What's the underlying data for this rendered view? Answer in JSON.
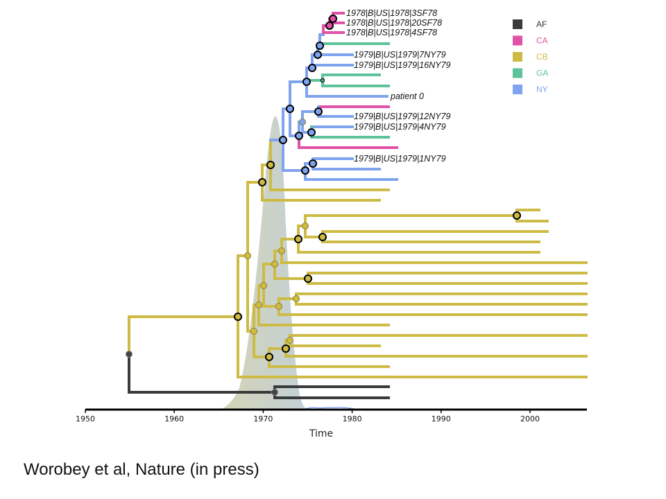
{
  "figure": {
    "axis": {
      "label": "Time",
      "ticks": [
        "1950",
        "1960",
        "1970",
        "1980",
        "1990",
        "2000"
      ],
      "range": [
        1950,
        2006
      ]
    },
    "legend": [
      {
        "label": "AF",
        "color": "#3a3a3a"
      },
      {
        "label": "CA",
        "color": "#e052a8"
      },
      {
        "label": "CB",
        "color": "#cdbb45"
      },
      {
        "label": "GA",
        "color": "#5ec29a"
      },
      {
        "label": "NY",
        "color": "#7fa3ee"
      }
    ],
    "tip_labels": [
      "1978|B|US|1978|3SF78",
      "1978|B|US|1978|20SF78",
      "1978|B|US|1978|4SF78",
      "1979|B|US|1979|7NY79",
      "1979|B|US|1979|16NY79",
      "patient 0",
      "1979|B|US|1979|12NY79",
      "1979|B|US|1979|4NY79",
      "1979|B|US|1979|1NY79"
    ]
  },
  "caption": "Worobey et al, Nature (in press)"
}
